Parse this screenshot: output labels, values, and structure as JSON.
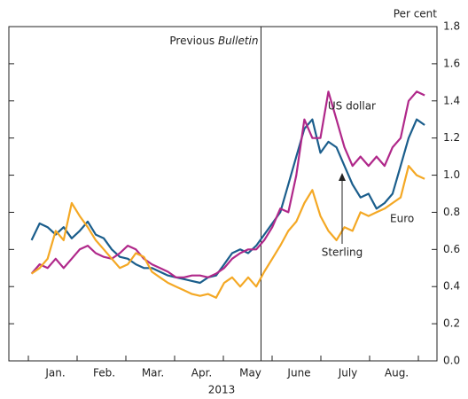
{
  "chart_data": {
    "type": "line",
    "unit_label": "Per cent",
    "year_label": "2013",
    "annotation": {
      "text": "Previous ",
      "emph": "Bulletin",
      "x": 145
    },
    "categories": [
      "Jan.",
      "Feb.",
      "Mar.",
      "Apr.",
      "May",
      "June",
      "July",
      "Aug."
    ],
    "x": [
      2,
      7,
      12,
      17,
      22,
      27,
      32,
      37,
      42,
      47,
      52,
      57,
      62,
      67,
      72,
      77,
      82,
      87,
      92,
      97,
      102,
      107,
      112,
      117,
      122,
      127,
      132,
      137,
      142,
      147,
      152,
      157,
      162,
      167,
      172,
      177,
      182,
      187,
      192,
      197,
      202,
      207,
      212,
      217,
      222,
      227,
      232,
      237,
      242,
      247
    ],
    "xlim": [
      0,
      253
    ],
    "ylim": [
      0,
      1.8
    ],
    "yticks": [
      {
        "value": 0,
        "label": "0.0"
      },
      {
        "value": 0.2,
        "label": "0.2"
      },
      {
        "value": 0.4,
        "label": "0.4"
      },
      {
        "value": 0.6,
        "label": "0.6"
      },
      {
        "value": 0.8,
        "label": "0.8"
      },
      {
        "value": 1.0,
        "label": "1.0"
      },
      {
        "value": 1.2,
        "label": "1.2"
      },
      {
        "value": 1.4,
        "label": "1.4"
      },
      {
        "value": 1.6,
        "label": "1.6"
      },
      {
        "value": 1.8,
        "label": "1.8"
      }
    ],
    "series": [
      {
        "name": "Euro",
        "color": "#1b5e8c",
        "values": [
          0.65,
          0.74,
          0.72,
          0.68,
          0.72,
          0.66,
          0.7,
          0.75,
          0.68,
          0.66,
          0.6,
          0.56,
          0.55,
          0.52,
          0.5,
          0.5,
          0.48,
          0.46,
          0.45,
          0.44,
          0.43,
          0.42,
          0.45,
          0.46,
          0.52,
          0.58,
          0.6,
          0.58,
          0.62,
          0.68,
          0.74,
          0.8,
          0.95,
          1.1,
          1.25,
          1.3,
          1.12,
          1.18,
          1.15,
          1.05,
          0.95,
          0.88,
          0.9,
          0.82,
          0.85,
          0.9,
          1.05,
          1.2,
          1.3,
          1.27
        ]
      },
      {
        "name": "US dollar",
        "color": "#b0288a",
        "values": [
          0.47,
          0.52,
          0.5,
          0.55,
          0.5,
          0.55,
          0.6,
          0.62,
          0.58,
          0.56,
          0.55,
          0.58,
          0.62,
          0.6,
          0.55,
          0.52,
          0.5,
          0.48,
          0.45,
          0.45,
          0.46,
          0.46,
          0.45,
          0.47,
          0.5,
          0.55,
          0.58,
          0.6,
          0.6,
          0.65,
          0.72,
          0.82,
          0.8,
          1.0,
          1.3,
          1.2,
          1.2,
          1.45,
          1.3,
          1.15,
          1.05,
          1.1,
          1.05,
          1.1,
          1.05,
          1.15,
          1.2,
          1.4,
          1.45,
          1.43
        ]
      },
      {
        "name": "Sterling",
        "color": "#f4a824",
        "values": [
          0.47,
          0.5,
          0.55,
          0.7,
          0.65,
          0.85,
          0.78,
          0.72,
          0.65,
          0.6,
          0.55,
          0.5,
          0.52,
          0.58,
          0.56,
          0.48,
          0.45,
          0.42,
          0.4,
          0.38,
          0.36,
          0.35,
          0.36,
          0.34,
          0.42,
          0.45,
          0.4,
          0.45,
          0.4,
          0.48,
          0.55,
          0.62,
          0.7,
          0.75,
          0.85,
          0.92,
          0.78,
          0.7,
          0.65,
          0.72,
          0.7,
          0.8,
          0.78,
          0.8,
          0.82,
          0.85,
          0.88,
          1.05,
          1.0,
          0.98
        ]
      }
    ]
  }
}
